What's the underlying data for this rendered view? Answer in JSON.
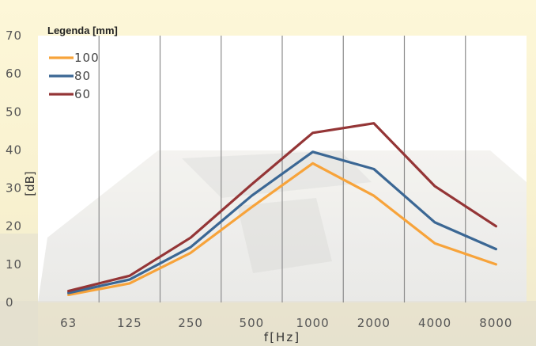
{
  "chart_data": {
    "type": "line",
    "legend_title": "Legenda [mm]",
    "xlabel": "f[Hz]",
    "ylabel": "[dB]",
    "categories": [
      "63",
      "125",
      "250",
      "500",
      "1000",
      "2000",
      "4000",
      "8000"
    ],
    "ylim": [
      0,
      70
    ],
    "yticks": [
      "0",
      "10",
      "20",
      "30",
      "40",
      "50",
      "60",
      "70"
    ],
    "grid": "vertical",
    "legend_position": "top-left",
    "series": [
      {
        "name": "100",
        "color": "#f7a33a",
        "values": [
          2,
          5,
          13,
          25,
          36.5,
          28,
          15.5,
          10
        ]
      },
      {
        "name": "80",
        "color": "#3b6794",
        "values": [
          2.5,
          6,
          14.5,
          28,
          39.5,
          35,
          21,
          14
        ]
      },
      {
        "name": "60",
        "color": "#943536",
        "values": [
          3,
          7,
          17,
          31,
          44.5,
          47,
          30.5,
          20
        ]
      }
    ]
  }
}
